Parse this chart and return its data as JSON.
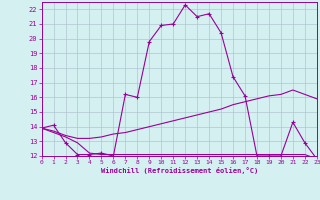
{
  "xlabel": "Windchill (Refroidissement éolien,°C)",
  "xlim": [
    0,
    23
  ],
  "ylim": [
    12,
    22.5
  ],
  "yticks": [
    12,
    13,
    14,
    15,
    16,
    17,
    18,
    19,
    20,
    21,
    22
  ],
  "xticks": [
    0,
    1,
    2,
    3,
    4,
    5,
    6,
    7,
    8,
    9,
    10,
    11,
    12,
    13,
    14,
    15,
    16,
    17,
    18,
    19,
    20,
    21,
    22,
    23
  ],
  "background_color": "#d4f0f0",
  "line_color": "#990099",
  "grid_color": "#aabbcc",
  "line1_x": [
    0,
    1,
    2,
    3,
    4,
    5,
    6,
    7,
    8,
    9,
    10,
    11,
    12,
    13,
    14,
    15,
    16,
    17,
    18,
    19,
    20,
    21,
    22,
    23
  ],
  "line1_y": [
    13.9,
    14.1,
    12.9,
    12.1,
    12.1,
    12.2,
    12.0,
    16.2,
    16.0,
    19.8,
    20.9,
    21.0,
    22.3,
    21.5,
    21.7,
    20.4,
    17.4,
    16.1,
    12.0,
    12.0,
    12.0,
    14.3,
    12.9,
    11.8
  ],
  "line2_x": [
    0,
    1,
    2,
    3,
    4,
    5,
    6,
    7,
    8,
    9,
    10,
    11,
    12,
    13,
    14,
    15,
    16,
    17,
    18,
    19,
    20,
    21,
    22,
    23
  ],
  "line2_y": [
    13.9,
    13.7,
    13.4,
    13.2,
    13.2,
    13.3,
    13.5,
    13.6,
    13.8,
    14.0,
    14.2,
    14.4,
    14.6,
    14.8,
    15.0,
    15.2,
    15.5,
    15.7,
    15.9,
    16.1,
    16.2,
    16.5,
    16.2,
    15.9
  ],
  "line3_x": [
    0,
    1,
    2,
    3,
    4,
    5,
    6,
    7,
    8,
    9,
    10,
    11,
    12,
    13,
    14,
    15,
    16,
    17,
    18,
    19,
    20,
    21,
    22,
    23
  ],
  "line3_y": [
    13.9,
    13.6,
    13.3,
    12.9,
    12.2,
    12.1,
    12.1,
    12.1,
    12.1,
    12.1,
    12.1,
    12.1,
    12.1,
    12.1,
    12.1,
    12.1,
    12.1,
    12.1,
    12.1,
    12.1,
    12.1,
    12.1,
    12.1,
    11.8
  ]
}
